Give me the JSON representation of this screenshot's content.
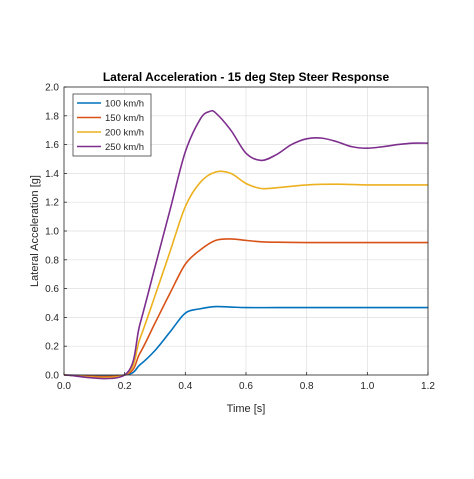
{
  "chart_data": {
    "type": "line",
    "title": "Lateral Acceleration - 15 deg Step Steer Response",
    "xlabel": "Time [s]",
    "ylabel": "Lateral Acceleration [g]",
    "xlim": [
      0,
      1.2
    ],
    "ylim": [
      0,
      2.0
    ],
    "xticks": [
      0,
      0.2,
      0.4,
      0.6,
      0.8,
      1.0,
      1.2
    ],
    "xtick_labels": [
      "0.0",
      "0.2",
      "0.4",
      "0.6",
      "0.8",
      "1.0",
      "1.2"
    ],
    "yticks": [
      0,
      0.2,
      0.4,
      0.6,
      0.8,
      1.0,
      1.2,
      1.4,
      1.6,
      1.8,
      2.0
    ],
    "ytick_labels": [
      "0.0",
      "0.2",
      "0.4",
      "0.6",
      "0.8",
      "1.0",
      "1.2",
      "1.4",
      "1.6",
      "1.8",
      "2.0"
    ],
    "grid": true,
    "legend_position": "top-left",
    "series": [
      {
        "name": "100 km/h",
        "color": "#0072BD",
        "x": [
          0,
          0.2,
          0.25,
          0.3,
          0.35,
          0.4,
          0.45,
          0.5,
          0.55,
          0.6,
          0.7,
          0.8,
          0.9,
          1.0,
          1.1,
          1.2
        ],
        "y": [
          0,
          0,
          0.07,
          0.17,
          0.3,
          0.43,
          0.46,
          0.475,
          0.472,
          0.468,
          0.468,
          0.468,
          0.468,
          0.468,
          0.468,
          0.468
        ]
      },
      {
        "name": "150 km/h",
        "color": "#D95319",
        "x": [
          0,
          0.2,
          0.25,
          0.3,
          0.35,
          0.4,
          0.45,
          0.5,
          0.55,
          0.6,
          0.65,
          0.7,
          0.8,
          0.9,
          1.0,
          1.1,
          1.2
        ],
        "y": [
          0,
          0,
          0.15,
          0.36,
          0.57,
          0.77,
          0.87,
          0.935,
          0.945,
          0.935,
          0.925,
          0.922,
          0.92,
          0.92,
          0.92,
          0.92,
          0.92
        ]
      },
      {
        "name": "200 km/h",
        "color": "#EDB120",
        "x": [
          0,
          0.2,
          0.25,
          0.3,
          0.35,
          0.4,
          0.45,
          0.5,
          0.55,
          0.6,
          0.65,
          0.7,
          0.8,
          0.9,
          1.0,
          1.1,
          1.2
        ],
        "y": [
          0,
          0,
          0.25,
          0.55,
          0.86,
          1.17,
          1.34,
          1.41,
          1.4,
          1.33,
          1.295,
          1.3,
          1.32,
          1.325,
          1.32,
          1.32,
          1.32
        ]
      },
      {
        "name": "250 km/h",
        "color": "#7E2F8E",
        "x": [
          0,
          0.2,
          0.25,
          0.3,
          0.35,
          0.4,
          0.45,
          0.48,
          0.5,
          0.55,
          0.6,
          0.65,
          0.7,
          0.75,
          0.8,
          0.85,
          0.9,
          0.95,
          1.0,
          1.05,
          1.1,
          1.15,
          1.2
        ],
        "y": [
          0,
          0,
          0.35,
          0.75,
          1.15,
          1.55,
          1.78,
          1.83,
          1.82,
          1.7,
          1.54,
          1.49,
          1.53,
          1.6,
          1.64,
          1.645,
          1.62,
          1.585,
          1.575,
          1.585,
          1.6,
          1.61,
          1.61
        ]
      }
    ]
  }
}
